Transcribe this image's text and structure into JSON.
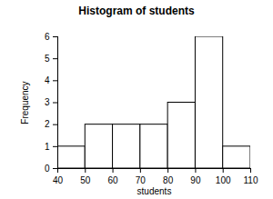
{
  "chart_data": {
    "type": "histogram",
    "title": "Histogram of students",
    "x_label": "students",
    "y_label": "Frequency",
    "bins": [
      40,
      50,
      60,
      70,
      80,
      90,
      100,
      110
    ],
    "values": [
      1,
      2,
      2,
      2,
      3,
      6,
      1
    ],
    "color": "#ffffff",
    "xlim": [
      40,
      110
    ],
    "xticks": [
      40,
      50,
      60,
      70,
      80,
      90,
      100,
      110
    ],
    "ylim": [
      0,
      6
    ],
    "yticks": [
      0,
      1,
      2,
      3,
      4,
      5,
      6
    ],
    "grid": false
  }
}
